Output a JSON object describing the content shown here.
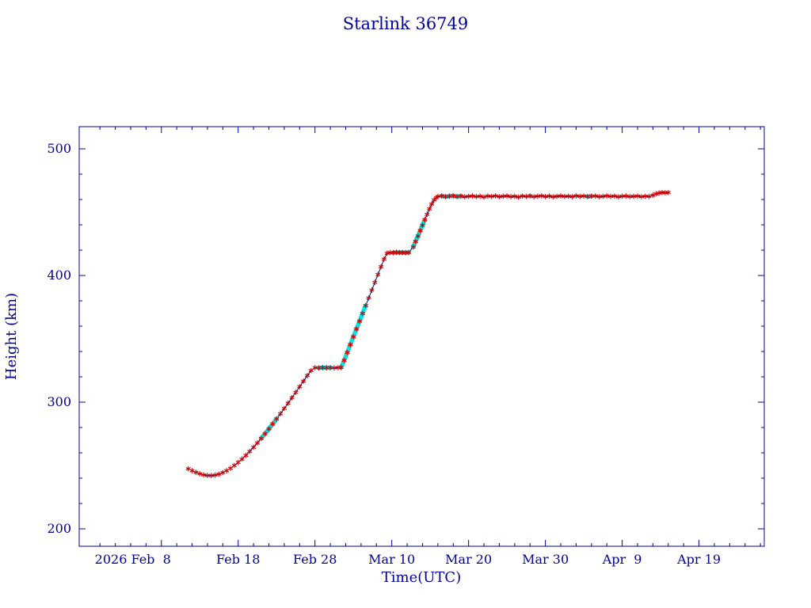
{
  "chart": {
    "title": "Starlink 36749",
    "xlabel": "Time(UTC)",
    "ylabel": "Height (km)"
  },
  "chart_data": {
    "type": "line",
    "title": "Starlink 36749",
    "xlabel": "Time(UTC)",
    "ylabel": "Height (km)",
    "x_unit": "day number of 2026 (Feb 1 = day 1, Mar 1 = day 29, Apr 1 = day 60)",
    "xlim": [
      -2.7,
      86.5
    ],
    "ylim": [
      186.25,
      517.5
    ],
    "grid": false,
    "legend": null,
    "x_major_ticks": [
      {
        "x": 8,
        "label": "2026 Feb  8"
      },
      {
        "x": 18,
        "label": "Feb 18"
      },
      {
        "x": 28,
        "label": "Feb 28"
      },
      {
        "x": 38,
        "label": "Mar 10"
      },
      {
        "x": 48,
        "label": "Mar 20"
      },
      {
        "x": 58,
        "label": "Mar 30"
      },
      {
        "x": 68,
        "label": "Apr  9"
      },
      {
        "x": 78,
        "label": "Apr 19"
      }
    ],
    "x_minor_step": 2,
    "y_major_ticks": [
      200,
      300,
      400,
      500
    ],
    "y_minor_step": 20,
    "colors": {
      "axis": "#000099",
      "label": "#000099",
      "marker": "#cc0000",
      "highlight": "#00e5e5",
      "line": "#000080",
      "background": "#ffffff"
    },
    "marker": "asterisk",
    "series": [
      {
        "name": "height",
        "points": [
          [
            11.5,
            247.4
          ],
          [
            12,
            245.9
          ],
          [
            12.5,
            244.6
          ],
          [
            13,
            243.5
          ],
          [
            13.5,
            242.6
          ],
          [
            14,
            242.1
          ],
          [
            14.5,
            242
          ],
          [
            15,
            242.4
          ],
          [
            15.5,
            243.2
          ],
          [
            16,
            244.4
          ],
          [
            16.5,
            245.9
          ],
          [
            17,
            247.8
          ],
          [
            17.5,
            250
          ],
          [
            18,
            252.4
          ],
          [
            18.5,
            255.1
          ],
          [
            19,
            258
          ],
          [
            19.5,
            261.1
          ],
          [
            20,
            264.4
          ],
          [
            20.5,
            267.8
          ],
          [
            21,
            271.4
          ],
          [
            21.5,
            275.1
          ],
          [
            22,
            278.9
          ],
          [
            22.5,
            282.8
          ],
          [
            23,
            286.8
          ],
          [
            23.5,
            290.9
          ],
          [
            24,
            295
          ],
          [
            24.5,
            299.2
          ],
          [
            25,
            303.5
          ],
          [
            25.5,
            307.8
          ],
          [
            26,
            312.2
          ],
          [
            26.5,
            316.6
          ],
          [
            27,
            321
          ],
          [
            27.5,
            325
          ],
          [
            28,
            327.2
          ],
          [
            28.5,
            327
          ],
          [
            29,
            327.3
          ],
          [
            29.5,
            327.1
          ],
          [
            30,
            327.2
          ],
          [
            30.5,
            327
          ],
          [
            31,
            327.2
          ],
          [
            31.4,
            327.4
          ],
          [
            31.8,
            333
          ],
          [
            32.2,
            339.2
          ],
          [
            32.6,
            345.4
          ],
          [
            33,
            351.6
          ],
          [
            33.4,
            357.7
          ],
          [
            33.8,
            363.9
          ],
          [
            34.2,
            370
          ],
          [
            34.6,
            376.2
          ],
          [
            35,
            382.3
          ],
          [
            35.4,
            388.5
          ],
          [
            35.8,
            394.6
          ],
          [
            36.2,
            400.8
          ],
          [
            36.6,
            406.9
          ],
          [
            37,
            413
          ],
          [
            37.4,
            417.6
          ],
          [
            37.8,
            418.1
          ],
          [
            38.2,
            418
          ],
          [
            38.6,
            418.3
          ],
          [
            39,
            418.1
          ],
          [
            39.4,
            418.2
          ],
          [
            39.8,
            418
          ],
          [
            40.2,
            418.2
          ],
          [
            40.8,
            422.5
          ],
          [
            41.1,
            426.8
          ],
          [
            41.4,
            431.1
          ],
          [
            41.7,
            435.4
          ],
          [
            42,
            439.7
          ],
          [
            42.3,
            444
          ],
          [
            42.6,
            448.3
          ],
          [
            42.9,
            452.6
          ],
          [
            43.2,
            456.4
          ],
          [
            43.5,
            459.6
          ],
          [
            43.8,
            461.4
          ],
          [
            44,
            462.4
          ],
          [
            44.5,
            462.8
          ],
          [
            45,
            462.2
          ],
          [
            45.5,
            462.6
          ],
          [
            46,
            462.9
          ],
          [
            46.5,
            462.3
          ],
          [
            47,
            462.7
          ],
          [
            47.5,
            462.1
          ],
          [
            48,
            462.5
          ],
          [
            48.5,
            462.8
          ],
          [
            49,
            462.3
          ],
          [
            49.5,
            462.6
          ],
          [
            50,
            462
          ],
          [
            50.5,
            462.7
          ],
          [
            51,
            462.4
          ],
          [
            51.5,
            462.9
          ],
          [
            52,
            462.2
          ],
          [
            52.5,
            462.6
          ],
          [
            53,
            462.8
          ],
          [
            53.5,
            462.3
          ],
          [
            54,
            462.5
          ],
          [
            54.5,
            461.9
          ],
          [
            55,
            462.7
          ],
          [
            55.5,
            462.4
          ],
          [
            56,
            462.8
          ],
          [
            56.5,
            462.2
          ],
          [
            57,
            462.6
          ],
          [
            57.5,
            462.9
          ],
          [
            58,
            462.3
          ],
          [
            58.5,
            462.7
          ],
          [
            59,
            462.1
          ],
          [
            59.5,
            462.5
          ],
          [
            60,
            462.8
          ],
          [
            60.5,
            462.4
          ],
          [
            61,
            462.6
          ],
          [
            61.5,
            462.2
          ],
          [
            62,
            462.9
          ],
          [
            62.5,
            462.5
          ],
          [
            63,
            462.7
          ],
          [
            63.5,
            462.3
          ],
          [
            64,
            462.6
          ],
          [
            64.5,
            462.8
          ],
          [
            65,
            462.2
          ],
          [
            65.5,
            462.5
          ],
          [
            66,
            462.9
          ],
          [
            66.5,
            462.4
          ],
          [
            67,
            462.7
          ],
          [
            67.5,
            462.1
          ],
          [
            68,
            462.6
          ],
          [
            68.5,
            462.8
          ],
          [
            69,
            462.3
          ],
          [
            69.5,
            462.5
          ],
          [
            70,
            462.7
          ],
          [
            70.5,
            462.2
          ],
          [
            71,
            462.6
          ],
          [
            71.5,
            462.4
          ],
          [
            72,
            463.4
          ],
          [
            72.4,
            464.5
          ],
          [
            72.8,
            465.1
          ],
          [
            73.2,
            465.5
          ],
          [
            73.6,
            465.3
          ],
          [
            74,
            465.5
          ]
        ]
      }
    ],
    "highlight_segments": [
      [
        21,
        23.3
      ],
      [
        28.2,
        30.4
      ],
      [
        31.4,
        34.9
      ],
      [
        38,
        40.2
      ],
      [
        40.8,
        42.3
      ],
      [
        44.4,
        47.4
      ],
      [
        55.8,
        56.3
      ],
      [
        63.5,
        64
      ]
    ]
  }
}
